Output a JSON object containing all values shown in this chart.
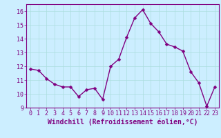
{
  "x": [
    0,
    1,
    2,
    3,
    4,
    5,
    6,
    7,
    8,
    9,
    10,
    11,
    12,
    13,
    14,
    15,
    16,
    17,
    18,
    19,
    20,
    21,
    22,
    23
  ],
  "y": [
    11.8,
    11.7,
    11.1,
    10.7,
    10.5,
    10.5,
    9.8,
    10.3,
    10.4,
    9.6,
    12.0,
    12.5,
    14.1,
    15.5,
    16.1,
    15.1,
    14.5,
    13.6,
    13.4,
    13.1,
    11.6,
    10.8,
    9.1,
    10.5
  ],
  "line_color": "#800080",
  "marker_color": "#800080",
  "bg_color": "#cceeff",
  "grid_color": "#aadddd",
  "xlabel": "Windchill (Refroidissement éolien,°C)",
  "ylabel": "",
  "title": "",
  "xlim": [
    -0.5,
    23.5
  ],
  "ylim": [
    9,
    16.5
  ],
  "xticks": [
    0,
    1,
    2,
    3,
    4,
    5,
    6,
    7,
    8,
    9,
    10,
    11,
    12,
    13,
    14,
    15,
    16,
    17,
    18,
    19,
    20,
    21,
    22,
    23
  ],
  "yticks": [
    9,
    10,
    11,
    12,
    13,
    14,
    15,
    16
  ],
  "marker_size": 2.5,
  "line_width": 1.0,
  "tick_fontsize": 6.0,
  "xlabel_fontsize": 7.0
}
